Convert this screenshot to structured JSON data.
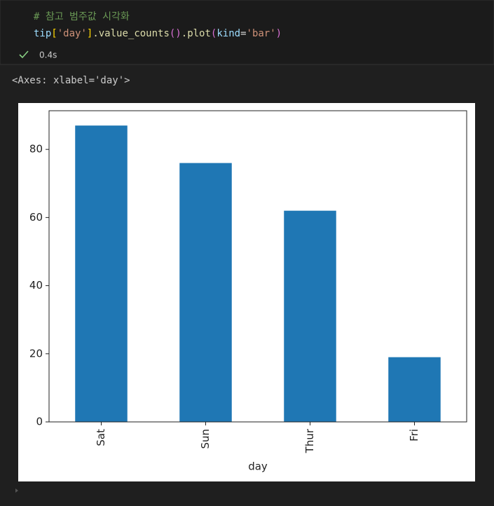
{
  "cell": {
    "comment": "# 참고 범주값 시각화",
    "tokens": [
      "tip",
      "[",
      "'day'",
      "]",
      ".value_counts",
      "()",
      ".plot",
      "(",
      "kind",
      "=",
      "'bar'",
      ")"
    ],
    "status": "0.4s"
  },
  "output": {
    "text": "<Axes: xlabel='day'>"
  },
  "chart_data": {
    "type": "bar",
    "xlabel": "day",
    "categories": [
      "Sat",
      "Sun",
      "Thur",
      "Fri"
    ],
    "values": [
      87,
      76,
      62,
      19
    ],
    "color": "#1f77b4",
    "ylim": [
      0,
      91.35
    ],
    "yticks": [
      0,
      20,
      40,
      60,
      80
    ]
  }
}
